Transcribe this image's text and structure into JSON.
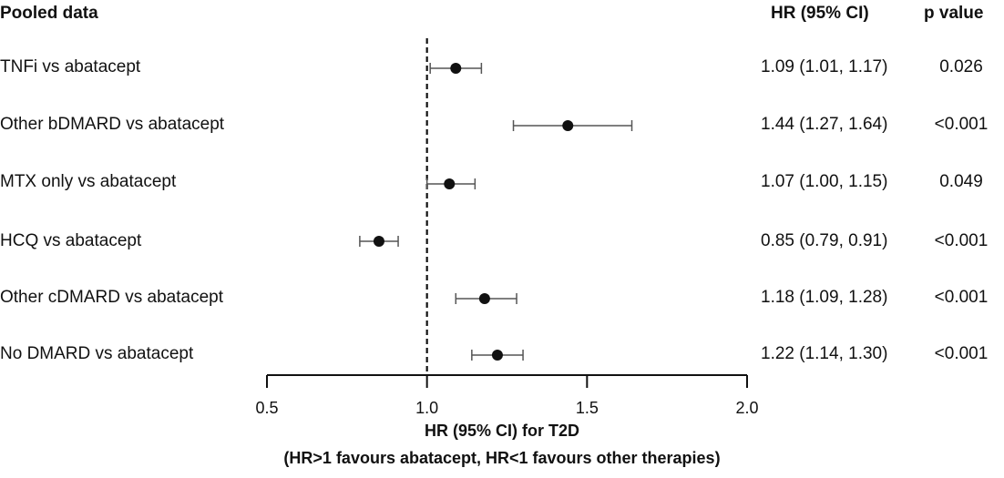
{
  "headers": {
    "left": "Pooled data",
    "hr": "HR (95% CI)",
    "p": "p value"
  },
  "chart_data": {
    "type": "forest",
    "xlabel_line1": "HR (95% CI) for T2D",
    "xlabel_line2": "(HR>1 favours abatacept, HR<1 favours other therapies)",
    "xlim": [
      0.5,
      2.0
    ],
    "xticks": [
      0.5,
      1.0,
      1.5,
      2.0
    ],
    "xtick_labels": [
      "0.5",
      "1.0",
      "1.5",
      "2.0"
    ],
    "reference_line": 1.0,
    "rows": [
      {
        "label": "TNFi vs abatacept",
        "hr": 1.09,
        "lo": 1.01,
        "hi": 1.17,
        "hr_text": "1.09 (1.01, 1.17)",
        "p": "0.026"
      },
      {
        "label": "Other bDMARD vs abatacept",
        "hr": 1.44,
        "lo": 1.27,
        "hi": 1.64,
        "hr_text": "1.44 (1.27, 1.64)",
        "p": "<0.001"
      },
      {
        "label": "MTX only vs abatacept",
        "hr": 1.07,
        "lo": 1.0,
        "hi": 1.15,
        "hr_text": "1.07 (1.00, 1.15)",
        "p": "0.049"
      },
      {
        "label": "HCQ vs abatacept",
        "hr": 0.85,
        "lo": 0.79,
        "hi": 0.91,
        "hr_text": "0.85 (0.79, 0.91)",
        "p": "<0.001"
      },
      {
        "label": "Other cDMARD vs abatacept",
        "hr": 1.18,
        "lo": 1.09,
        "hi": 1.28,
        "hr_text": "1.18 (1.09, 1.28)",
        "p": "<0.001"
      },
      {
        "label": "No DMARD vs abatacept",
        "hr": 1.22,
        "lo": 1.14,
        "hi": 1.3,
        "hr_text": "1.22 (1.14, 1.30)",
        "p": "<0.001"
      }
    ]
  }
}
